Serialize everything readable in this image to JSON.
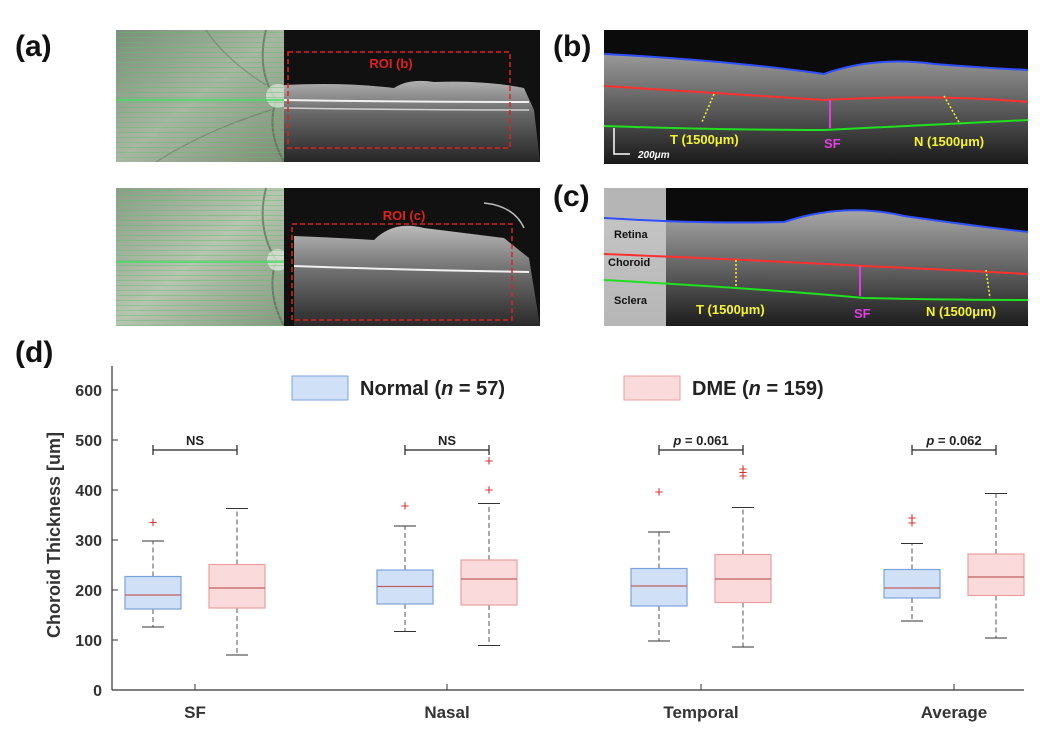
{
  "figure": {
    "panel_a_label": "(a)",
    "panel_b_label": "(b)",
    "panel_c_label": "(c)",
    "panel_d_label": "(d)"
  },
  "panel_a": {
    "roi_top_label": "ROI (b)",
    "roi_bottom_label": "ROI (c)",
    "roi_color": "#e02020"
  },
  "panel_b": {
    "temporal_label": "T (1500μm)",
    "subfoveal_label": "SF",
    "nasal_label": "N (1500μm)",
    "scale_bar_label": "200μm",
    "boundary_colors": {
      "ilm": "#3050ff",
      "bm": "#ff3030",
      "csi": "#20e020"
    },
    "marker_colors": {
      "yellow": "#f5f530",
      "magenta": "#e040e0"
    }
  },
  "panel_c": {
    "temporal_label": "T (1500μm)",
    "subfoveal_label": "SF",
    "nasal_label": "N (1500μm)",
    "retina_label": "Retina",
    "choroid_label": "Choroid",
    "sclera_label": "Sclera"
  },
  "chart_data": {
    "type": "box",
    "ylabel": "Choroid Thickness [um]",
    "ylim": [
      0,
      620
    ],
    "yticks": [
      0,
      100,
      200,
      300,
      400,
      500,
      600
    ],
    "categories": [
      "SF",
      "Nasal",
      "Temporal",
      "Average"
    ],
    "legend": [
      {
        "name_prefix": "Normal (",
        "n_symbol": "n",
        "name_suffix": " = 57)",
        "fill": "#cfe0f7",
        "stroke": "#7aa3dd"
      },
      {
        "name_prefix": "DME (",
        "n_symbol": "n",
        "name_suffix": " = 159)",
        "fill": "#fadada",
        "stroke": "#e8a0a0"
      }
    ],
    "series": [
      {
        "name": "Normal",
        "boxes": [
          {
            "whisker_low": 126,
            "q1": 162,
            "median": 190,
            "q3": 227,
            "whisker_high": 298,
            "outliers": [
              335
            ]
          },
          {
            "whisker_low": 117,
            "q1": 172,
            "median": 207,
            "q3": 240,
            "whisker_high": 328,
            "outliers": [
              368
            ]
          },
          {
            "whisker_low": 98,
            "q1": 168,
            "median": 208,
            "q3": 243,
            "whisker_high": 316,
            "outliers": [
              396
            ]
          },
          {
            "whisker_low": 138,
            "q1": 184,
            "median": 204,
            "q3": 241,
            "whisker_high": 293,
            "outliers": [
              334,
              344
            ]
          }
        ]
      },
      {
        "name": "DME",
        "boxes": [
          {
            "whisker_low": 70,
            "q1": 164,
            "median": 204,
            "q3": 251,
            "whisker_high": 363,
            "outliers": []
          },
          {
            "whisker_low": 89,
            "q1": 170,
            "median": 222,
            "q3": 260,
            "whisker_high": 373,
            "outliers": [
              400,
              458
            ]
          },
          {
            "whisker_low": 86,
            "q1": 175,
            "median": 222,
            "q3": 271,
            "whisker_high": 365,
            "outliers": [
              428,
              435,
              442
            ]
          },
          {
            "whisker_low": 104,
            "q1": 189,
            "median": 226,
            "q3": 272,
            "whisker_high": 393,
            "outliers": []
          }
        ]
      }
    ],
    "significance": [
      {
        "category": "SF",
        "label": "NS"
      },
      {
        "category": "Nasal",
        "label": "NS"
      },
      {
        "category": "Temporal",
        "label_prefix": "p",
        "label_suffix": " = 0.061"
      },
      {
        "category": "Average",
        "label_prefix": "p",
        "label_suffix": " = 0.062"
      }
    ]
  }
}
